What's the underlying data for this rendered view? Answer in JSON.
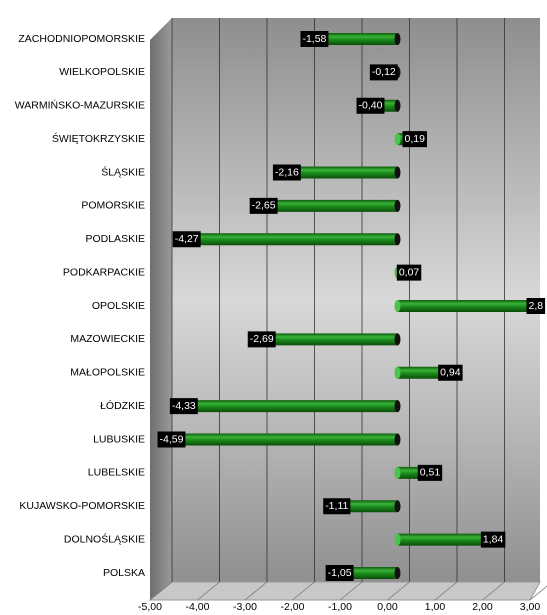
{
  "chart_data": {
    "type": "bar",
    "orientation": "horizontal",
    "categories": [
      "ZACHODNIOPOMORSKIE",
      "WIELKOPOLSKIE",
      "WARMIŃSKO-MAZURSKIE",
      "ŚWIĘTOKRZYSKIE",
      "ŚLĄSKIE",
      "POMORSKIE",
      "PODLASKIE",
      "PODKARPACKIE",
      "OPOLSKIE",
      "MAZOWIECKIE",
      "MAŁOPOLSKIE",
      "ŁÓDZKIE",
      "LUBUSKIE",
      "LUBELSKIE",
      "KUJAWSKO-POMORSKIE",
      "DOLNOŚLĄSKIE",
      "POLSKA"
    ],
    "values": [
      -1.58,
      -0.12,
      -0.4,
      0.19,
      -2.16,
      -2.65,
      -4.27,
      0.07,
      2.8,
      -2.69,
      0.94,
      -4.33,
      -4.59,
      0.51,
      -1.11,
      1.84,
      -1.05
    ],
    "value_labels": [
      "-1,58",
      "-0,12",
      "-0,40",
      "0,19",
      "-2,16",
      "-2,65",
      "-4,27",
      "0,07",
      "2,8",
      "-2,69",
      "0,94",
      "-4,33",
      "-4,59",
      "0,51",
      "-1,11",
      "1,84",
      "-1,05"
    ],
    "color": "#1f8f1f",
    "xlim": [
      -5,
      3
    ],
    "xticks": [
      {
        "value": -5,
        "label": "-5,00"
      },
      {
        "value": -4,
        "label": "-4,00"
      },
      {
        "value": -3,
        "label": "-3,00"
      },
      {
        "value": -2,
        "label": "-2,00"
      },
      {
        "value": -1,
        "label": "-1,00"
      },
      {
        "value": 0,
        "label": "0,00"
      },
      {
        "value": 1,
        "label": "1,00"
      },
      {
        "value": 2,
        "label": "2,00"
      },
      {
        "value": 3,
        "label": "3,00"
      }
    ],
    "grid": true
  }
}
